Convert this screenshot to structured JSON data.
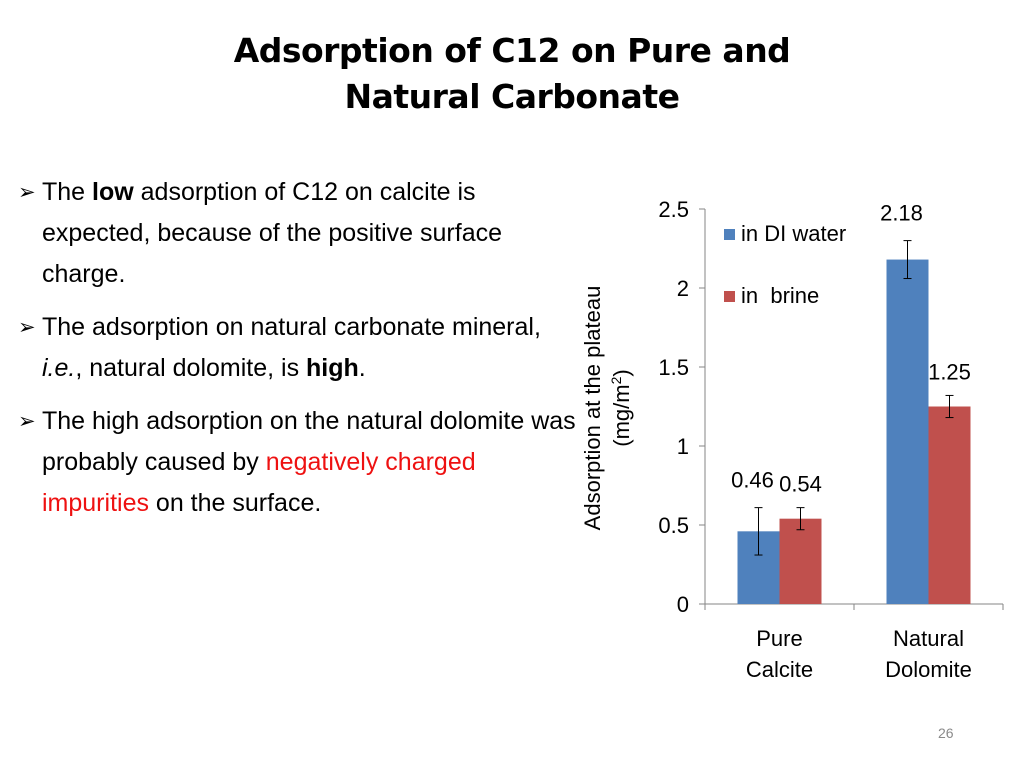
{
  "title": {
    "line1": "Adsorption of C12 on Pure and",
    "line2": "Natural Carbonate"
  },
  "bullets": [
    {
      "pre": "The ",
      "bold": "low",
      "post": " adsorption of C12 on calcite is expected, because of the positive surface charge."
    },
    {
      "pre": "The adsorption on natural carbonate mineral, ",
      "italic": "i.e.",
      "mid": ", natural dolomite,  is ",
      "bold": "high",
      "post": "."
    },
    {
      "pre": "The high adsorption on the natural dolomite was probably caused by ",
      "red": "negatively charged impurities",
      "post": " on the surface."
    }
  ],
  "bullet_icon": "arrow-bullet-icon",
  "chart_data": {
    "type": "bar",
    "categories": [
      [
        "Pure",
        "Calcite"
      ],
      [
        "Natural",
        "Dolomite"
      ]
    ],
    "series": [
      {
        "name": "in DI water",
        "values": [
          0.46,
          2.18
        ],
        "errors": [
          0.15,
          0.12
        ],
        "color": "#4f81bd"
      },
      {
        "name": "in  brine",
        "values": [
          0.54,
          1.25
        ],
        "errors": [
          0.07,
          0.07
        ],
        "color": "#c0504d"
      }
    ],
    "ylabel_line1": "Adsorption at the plateau",
    "ylabel_line2_pre": "(mg/m",
    "ylabel_line2_sup": "2",
    "ylabel_line2_post": ")",
    "ylim": [
      0,
      2.5
    ],
    "yticks": [
      "0",
      "0.5",
      "1",
      "1.5",
      "2",
      "2.5"
    ],
    "ytick_values": [
      0,
      0.5,
      1,
      1.5,
      2,
      2.5
    ],
    "data_labels": [
      [
        "0.46",
        "2.18"
      ],
      [
        "0.54",
        "1.25"
      ]
    ],
    "grid": false,
    "legend_position": "top-left"
  },
  "page_number": "26"
}
